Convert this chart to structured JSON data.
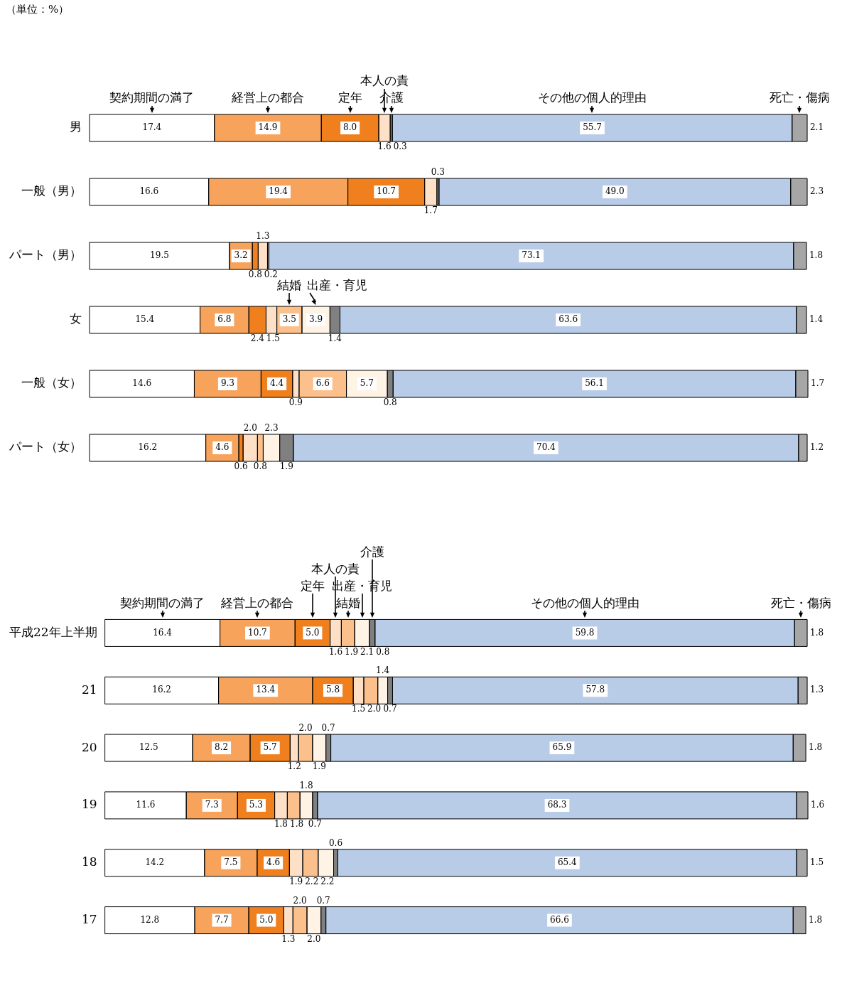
{
  "chart_data": [
    {
      "type": "bar",
      "orientation": "horizontal",
      "stacked": true,
      "tick_labels": "y",
      "annotations": [
        "（単位：%）"
      ],
      "categories": [
        "男",
        "一般（男）",
        "パート（男）",
        "女",
        "一般（女）",
        "パート（女）"
      ],
      "series": [
        {
          "name": "契約期間の満了",
          "color": "#ffffff",
          "values": [
            17.4,
            16.6,
            19.5,
            15.4,
            14.6,
            16.2
          ],
          "value_labels": [
            "17.4",
            "16.6",
            "19.5",
            "15.4",
            "14.6",
            "16.2"
          ]
        },
        {
          "name": "経営上の都合",
          "color": "#f7a35c",
          "values": [
            14.9,
            19.4,
            3.2,
            6.8,
            9.3,
            4.6
          ],
          "value_labels": [
            "14.9",
            "19.4",
            "3.2",
            "6.8",
            "9.3",
            "4.6"
          ]
        },
        {
          "name": "定年",
          "color": "#f07f1e",
          "values": [
            8.0,
            10.7,
            0.8,
            2.4,
            4.4,
            0.6
          ],
          "value_labels": [
            "8.0",
            "10.7",
            "0.8",
            "2.4",
            "4.4",
            "0.6"
          ]
        },
        {
          "name": "本人の責",
          "color": "#fde0c5",
          "values": [
            1.6,
            1.7,
            1.3,
            1.5,
            0.9,
            2.0
          ],
          "value_labels": [
            "1.6",
            "1.7",
            "1.3",
            "1.5",
            "0.9",
            "2.0"
          ]
        },
        {
          "name": "結婚",
          "color": "#fbc08c",
          "values": [
            null,
            null,
            null,
            3.5,
            6.6,
            0.8
          ],
          "value_labels": [
            null,
            null,
            null,
            "3.5",
            "6.6",
            "0.8"
          ]
        },
        {
          "name": "出産・育児",
          "color": "#fff3e6",
          "values": [
            null,
            null,
            null,
            3.9,
            5.7,
            2.3
          ],
          "value_labels": [
            null,
            null,
            null,
            "3.9",
            "5.7",
            "2.3"
          ]
        },
        {
          "name": "介護",
          "color": "#808080",
          "values": [
            0.3,
            0.3,
            0.2,
            1.4,
            0.8,
            1.9
          ],
          "value_labels": [
            "0.3",
            "0.3",
            "0.2",
            "1.4",
            "0.8",
            "1.9"
          ]
        },
        {
          "name": "その他の個人的理由",
          "color": "#b8cce8",
          "values": [
            55.7,
            49.0,
            73.1,
            63.6,
            56.1,
            70.4
          ],
          "value_labels": [
            "55.7",
            "49.0",
            "73.1",
            "63.6",
            "56.1",
            "70.4"
          ]
        },
        {
          "name": "死亡・傷病",
          "color": "#a6a6a6",
          "values": [
            2.1,
            2.3,
            1.8,
            1.4,
            1.7,
            1.2
          ],
          "value_labels": [
            "2.1",
            "2.3",
            "1.8",
            "1.4",
            "1.7",
            "1.2"
          ]
        }
      ]
    },
    {
      "type": "bar",
      "orientation": "horizontal",
      "stacked": true,
      "tick_labels": "y",
      "categories": [
        "平成22年上半期",
        "21",
        "20",
        "19",
        "18",
        "17"
      ],
      "series": [
        {
          "name": "契約期間の満了",
          "color": "#ffffff",
          "values": [
            16.4,
            16.2,
            12.5,
            11.6,
            14.2,
            12.8
          ],
          "value_labels": [
            "16.4",
            "16.2",
            "12.5",
            "11.6",
            "14.2",
            "12.8"
          ]
        },
        {
          "name": "経営上の都合",
          "color": "#f7a35c",
          "values": [
            10.7,
            13.4,
            8.2,
            7.3,
            7.5,
            7.7
          ],
          "value_labels": [
            "10.7",
            "13.4",
            "8.2",
            "7.3",
            "7.5",
            "7.7"
          ]
        },
        {
          "name": "定年",
          "color": "#f07f1e",
          "values": [
            5.0,
            5.8,
            5.7,
            5.3,
            4.6,
            5.0
          ],
          "value_labels": [
            "5.0",
            "5.8",
            "5.7",
            "5.3",
            "4.6",
            "5.0"
          ]
        },
        {
          "name": "本人の責",
          "color": "#fde0c5",
          "values": [
            1.6,
            1.5,
            1.2,
            1.8,
            1.9,
            1.3
          ],
          "value_labels": [
            "1.6",
            "1.5",
            "1.2",
            "1.8",
            "1.9",
            "1.3"
          ]
        },
        {
          "name": "結婚",
          "color": "#fbc08c",
          "values": [
            1.9,
            2.0,
            2.0,
            1.8,
            2.2,
            2.0
          ],
          "value_labels": [
            "1.9",
            "2.0",
            "2.0",
            "1.8",
            "2.2",
            "2.0"
          ]
        },
        {
          "name": "出産・育児",
          "color": "#fff3e6",
          "values": [
            2.1,
            1.4,
            1.9,
            1.8,
            2.2,
            2.0
          ],
          "value_labels": [
            "2.1",
            "1.4",
            "1.9",
            "1.8",
            "2.2",
            "2.0"
          ]
        },
        {
          "name": "介護",
          "color": "#808080",
          "values": [
            0.8,
            0.7,
            0.7,
            0.7,
            0.6,
            0.7
          ],
          "value_labels": [
            "0.8",
            "0.7",
            "0.7",
            "0.7",
            "0.6",
            "0.7"
          ]
        },
        {
          "name": "その他の個人的理由",
          "color": "#b8cce8",
          "values": [
            59.8,
            57.8,
            65.9,
            68.3,
            65.4,
            66.6
          ],
          "value_labels": [
            "59.8",
            "57.8",
            "65.9",
            "68.3",
            "65.4",
            "66.6"
          ]
        },
        {
          "name": "死亡・傷病",
          "color": "#a6a6a6",
          "values": [
            1.8,
            1.3,
            1.8,
            1.6,
            1.5,
            1.8
          ],
          "value_labels": [
            "1.8",
            "1.3",
            "1.8",
            "1.6",
            "1.5",
            "1.8"
          ]
        }
      ]
    }
  ]
}
